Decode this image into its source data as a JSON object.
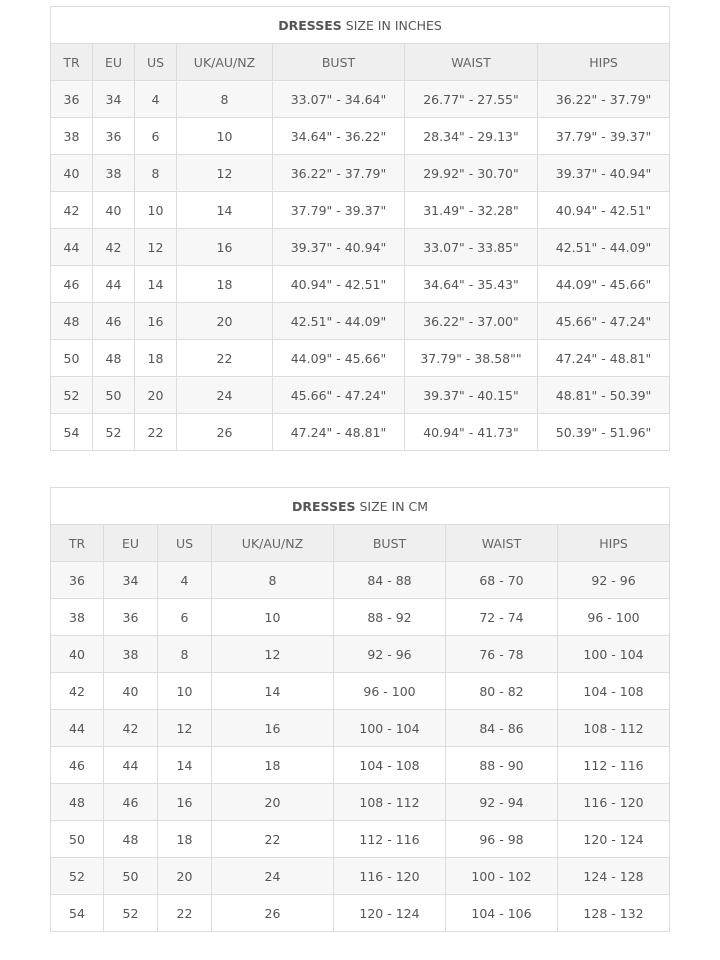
{
  "inches": {
    "title_bold": "DRESSES",
    "title_rest": " SIZE IN INCHES",
    "headers": [
      "TR",
      "EU",
      "US",
      "UK/AU/NZ",
      "BUST",
      "WAIST",
      "HIPS"
    ],
    "rows": [
      [
        "36",
        "34",
        "4",
        "8",
        "33.07\" - 34.64\"",
        "26.77\" - 27.55\"",
        "36.22\" - 37.79\""
      ],
      [
        "38",
        "36",
        "6",
        "10",
        "34.64\" - 36.22\"",
        "28.34\" - 29.13\"",
        "37.79\" - 39.37\""
      ],
      [
        "40",
        "38",
        "8",
        "12",
        "36.22\" - 37.79\"",
        "29.92\" - 30.70\"",
        "39.37\" - 40.94\""
      ],
      [
        "42",
        "40",
        "10",
        "14",
        "37.79\" - 39.37\"",
        "31.49\" - 32.28\"",
        "40.94\" - 42.51\""
      ],
      [
        "44",
        "42",
        "12",
        "16",
        "39.37\" - 40.94\"",
        "33.07\" - 33.85\"",
        "42.51\" - 44.09\""
      ],
      [
        "46",
        "44",
        "14",
        "18",
        "40.94\" - 42.51\"",
        "34.64\" - 35.43\"",
        "44.09\" - 45.66\""
      ],
      [
        "48",
        "46",
        "16",
        "20",
        "42.51\" - 44.09\"",
        "36.22\" - 37.00\"",
        "45.66\" - 47.24\""
      ],
      [
        "50",
        "48",
        "18",
        "22",
        "44.09\" - 45.66\"",
        "37.79\" - 38.58\"\"",
        "47.24\" - 48.81\""
      ],
      [
        "52",
        "50",
        "20",
        "24",
        "45.66\" - 47.24\"",
        "39.37\" - 40.15\"",
        "48.81\" - 50.39\""
      ],
      [
        "54",
        "52",
        "22",
        "26",
        "47.24\" - 48.81\"",
        "40.94\" - 41.73\"",
        "50.39\" - 51.96\""
      ]
    ]
  },
  "cm": {
    "title_bold": "DRESSES",
    "title_rest": " SIZE IN CM",
    "headers": [
      "TR",
      "EU",
      "US",
      "UK/AU/NZ",
      "BUST",
      "WAIST",
      "HIPS"
    ],
    "rows": [
      [
        "36",
        "34",
        "4",
        "8",
        "84 - 88",
        "68 - 70",
        "92 - 96"
      ],
      [
        "38",
        "36",
        "6",
        "10",
        "88 - 92",
        "72 - 74",
        "96 - 100"
      ],
      [
        "40",
        "38",
        "8",
        "12",
        "92 - 96",
        "76 - 78",
        "100 - 104"
      ],
      [
        "42",
        "40",
        "10",
        "14",
        "96 - 100",
        "80 - 82",
        "104 - 108"
      ],
      [
        "44",
        "42",
        "12",
        "16",
        "100 - 104",
        "84 - 86",
        "108 - 112"
      ],
      [
        "46",
        "44",
        "14",
        "18",
        "104 - 108",
        "88 - 90",
        "112 - 116"
      ],
      [
        "48",
        "46",
        "16",
        "20",
        "108 - 112",
        "92 - 94",
        "116 - 120"
      ],
      [
        "50",
        "48",
        "18",
        "22",
        "112 - 116",
        "96 - 98",
        "120 - 124"
      ],
      [
        "52",
        "50",
        "20",
        "24",
        "116 - 120",
        "100 - 102",
        "124 - 128"
      ],
      [
        "54",
        "52",
        "22",
        "26",
        "120 - 124",
        "104 - 106",
        "128 - 132"
      ]
    ]
  }
}
